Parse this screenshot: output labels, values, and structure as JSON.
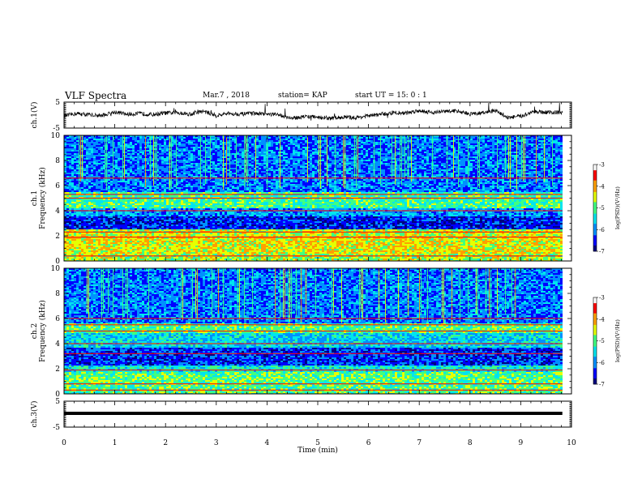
{
  "header": {
    "title": "VLF Spectra",
    "date": "Mar.7 , 2018",
    "station": "station= KAP",
    "start": "start UT = 15: 0 : 1"
  },
  "chart_data": [
    {
      "type": "line",
      "panel": "ch.1 time series",
      "ylabel": "ch.1(V)",
      "ylim": [
        -5,
        5
      ],
      "yticks": [
        5,
        -5
      ],
      "xlim": [
        0,
        10
      ],
      "x_end": 9.82,
      "series": [
        {
          "x": [
            0,
            0.25,
            0.5,
            0.75,
            1,
            1.25,
            1.5,
            1.75,
            2,
            2.25,
            2.5,
            2.75,
            3,
            3.25,
            3.5,
            3.75,
            4,
            4.25,
            4.5,
            4.75,
            5,
            5.25,
            5.5,
            5.75,
            6,
            6.25,
            6.5,
            6.75,
            7,
            7.25,
            7.5,
            7.75,
            8,
            8.25,
            8.5,
            8.75,
            9,
            9.25,
            9.5,
            9.82
          ],
          "values": [
            -0.3,
            0.6,
            0.1,
            -0.2,
            1.2,
            0.3,
            0.6,
            0.2,
            0.8,
            0.9,
            0.4,
            1.5,
            -0.2,
            0.6,
            0.4,
            0.6,
            0.3,
            0.1,
            -1.3,
            -0.5,
            -0.8,
            -1.3,
            -0.8,
            -1.0,
            -0.3,
            0.3,
            0.9,
            0.8,
            1.8,
            1.0,
            1.4,
            1.6,
            0.4,
            0.8,
            1.7,
            -0.9,
            -0.5,
            1.4,
            1.1,
            1.0
          ]
        }
      ]
    },
    {
      "type": "heatmap",
      "panel": "ch.1 spectrogram",
      "ylabel_lines": [
        "ch.1",
        "Frequency (kHz)"
      ],
      "xlim": [
        0,
        10
      ],
      "x_end": 9.82,
      "ylim": [
        0,
        10
      ],
      "yticks": [
        0,
        2,
        4,
        6,
        8,
        10
      ],
      "colorbar": {
        "label": "log(PSD)(V²/Hz)",
        "range": [
          -7,
          -3
        ],
        "ticks": [
          -3,
          -4,
          -5,
          -6,
          -7
        ],
        "colors": [
          "#000080",
          "#0000ff",
          "#0090ff",
          "#00e5ee",
          "#40ff80",
          "#e6ff00",
          "#ffa000",
          "#ff0000",
          "#ffffff"
        ]
      },
      "bands": [
        {
          "f": [
            0,
            0.6
          ],
          "level": -4.7
        },
        {
          "f": [
            0.6,
            2.0
          ],
          "level": -4.4
        },
        {
          "f": [
            2.0,
            2.5
          ],
          "level": -4.6
        },
        {
          "f": [
            2.5,
            3.5
          ],
          "level": -6.5
        },
        {
          "f": [
            3.5,
            4.2
          ],
          "level": -5.9
        },
        {
          "f": [
            4.2,
            5.5
          ],
          "level": -5.1
        },
        {
          "f": [
            5.5,
            10
          ],
          "level": -6.1
        }
      ],
      "lines_khz": [
        0.4,
        1.9,
        2.3,
        4.0,
        5.0,
        5.3,
        6.6
      ]
    },
    {
      "type": "heatmap",
      "panel": "ch.2 spectrogram",
      "ylabel_lines": [
        "ch.2",
        "Frequency (kHz)"
      ],
      "xlim": [
        0,
        10
      ],
      "x_end": 9.82,
      "ylim": [
        0,
        10
      ],
      "yticks": [
        0,
        2,
        4,
        6,
        8,
        10
      ],
      "colorbar": {
        "label": "log(PSD)(V²/Hz)",
        "range": [
          -7,
          -3
        ],
        "ticks": [
          -3,
          -4,
          -5,
          -6,
          -7
        ],
        "colors": [
          "#000080",
          "#0000ff",
          "#0090ff",
          "#00e5ee",
          "#40ff80",
          "#e6ff00",
          "#ffa000",
          "#ff0000",
          "#ffffff"
        ]
      },
      "bands": [
        {
          "f": [
            0,
            1.8
          ],
          "level": -5.0
        },
        {
          "f": [
            1.8,
            2.3
          ],
          "level": -5.4
        },
        {
          "f": [
            2.3,
            3.7
          ],
          "level": -6.4
        },
        {
          "f": [
            3.7,
            4.8
          ],
          "level": -5.6
        },
        {
          "f": [
            4.8,
            5.6
          ],
          "level": -5.0
        },
        {
          "f": [
            5.6,
            10
          ],
          "level": -6.1
        }
      ],
      "lines_khz": [
        0.3,
        0.8,
        1.9,
        3.2,
        4.0,
        5.0,
        5.5,
        6.0
      ]
    },
    {
      "type": "line",
      "panel": "ch.3 time series",
      "ylabel": "ch.3(V)",
      "ylim": [
        -5,
        5
      ],
      "yticks": [
        5,
        -5
      ],
      "xlim": [
        0,
        10
      ],
      "xticks": [
        0,
        1,
        2,
        3,
        4,
        5,
        6,
        7,
        8,
        9,
        10
      ],
      "xlabel": "Time (min)",
      "x_end": 9.82,
      "series": [
        {
          "x": [
            0,
            9.82
          ],
          "values": [
            0.3,
            0.3
          ]
        }
      ]
    }
  ]
}
